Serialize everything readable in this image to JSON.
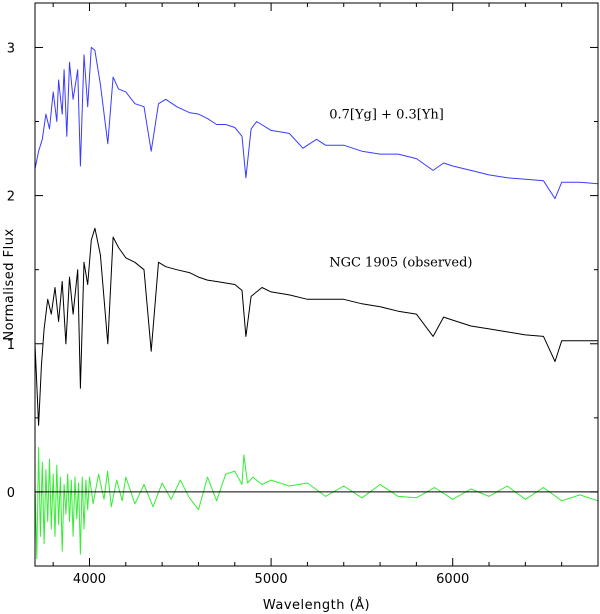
{
  "chart_data": {
    "type": "line",
    "title": "",
    "xlabel": "Wavelength (Å)",
    "ylabel": "Normalised Flux",
    "xlim": [
      3700,
      6800
    ],
    "ylim": [
      -0.5,
      3.3
    ],
    "grid": false,
    "x_ticks": [
      {
        "value": 4000,
        "label": "4000"
      },
      {
        "value": 5000,
        "label": "5000"
      },
      {
        "value": 6000,
        "label": "6000"
      }
    ],
    "y_ticks": [
      {
        "value": 0,
        "label": "0"
      },
      {
        "value": 1,
        "label": "1"
      },
      {
        "value": 2,
        "label": "2"
      },
      {
        "value": 3,
        "label": "3"
      }
    ],
    "zero_line": 0,
    "annotations": [
      {
        "text": "0.7[Yg] + 0.3[Yh]",
        "x": 5320,
        "y": 2.52
      },
      {
        "text": "NGC 1905 (observed)",
        "x": 5320,
        "y": 1.52
      }
    ],
    "series": [
      {
        "color": "#3b3bff",
        "x": [
          3700,
          3720,
          3740,
          3760,
          3780,
          3800,
          3820,
          3830,
          3850,
          3860,
          3875,
          3890,
          3910,
          3935,
          3950,
          3970,
          3990,
          4010,
          4030,
          4060,
          4101,
          4130,
          4160,
          4200,
          4250,
          4300,
          4340,
          4380,
          4420,
          4480,
          4550,
          4600,
          4650,
          4700,
          4750,
          4800,
          4840,
          4861,
          4890,
          4920,
          5000,
          5100,
          5175,
          5250,
          5300,
          5400,
          5500,
          5600,
          5700,
          5800,
          5892,
          5950,
          6000,
          6100,
          6200,
          6300,
          6400,
          6500,
          6563,
          6600,
          6700,
          6800
        ],
        "y": [
          2.18,
          2.3,
          2.38,
          2.55,
          2.45,
          2.7,
          2.5,
          2.78,
          2.55,
          2.85,
          2.4,
          2.9,
          2.65,
          2.85,
          2.2,
          2.95,
          2.6,
          3.0,
          2.98,
          2.75,
          2.35,
          2.8,
          2.72,
          2.7,
          2.62,
          2.6,
          2.3,
          2.62,
          2.65,
          2.6,
          2.56,
          2.55,
          2.52,
          2.48,
          2.48,
          2.46,
          2.4,
          2.12,
          2.45,
          2.5,
          2.44,
          2.42,
          2.32,
          2.38,
          2.34,
          2.34,
          2.3,
          2.28,
          2.28,
          2.25,
          2.17,
          2.22,
          2.2,
          2.17,
          2.14,
          2.12,
          2.11,
          2.1,
          1.98,
          2.09,
          2.09,
          2.08
        ]
      },
      {
        "color": "#000000",
        "x": [
          3700,
          3720,
          3735,
          3750,
          3770,
          3790,
          3810,
          3830,
          3850,
          3870,
          3890,
          3910,
          3935,
          3950,
          3970,
          3990,
          4010,
          4030,
          4060,
          4101,
          4130,
          4160,
          4200,
          4250,
          4300,
          4340,
          4380,
          4420,
          4480,
          4550,
          4600,
          4650,
          4700,
          4750,
          4800,
          4840,
          4861,
          4890,
          4950,
          5000,
          5100,
          5200,
          5300,
          5400,
          5500,
          5600,
          5700,
          5800,
          5892,
          5950,
          6000,
          6100,
          6200,
          6300,
          6400,
          6500,
          6563,
          6600,
          6700,
          6800
        ],
        "y": [
          1.0,
          0.45,
          0.85,
          1.1,
          1.3,
          1.2,
          1.38,
          1.15,
          1.42,
          1.0,
          1.45,
          1.2,
          1.5,
          0.7,
          1.55,
          1.4,
          1.7,
          1.78,
          1.6,
          1.0,
          1.72,
          1.65,
          1.58,
          1.55,
          1.5,
          0.95,
          1.55,
          1.52,
          1.5,
          1.48,
          1.45,
          1.43,
          1.42,
          1.41,
          1.4,
          1.36,
          1.05,
          1.32,
          1.38,
          1.35,
          1.33,
          1.3,
          1.3,
          1.3,
          1.27,
          1.25,
          1.22,
          1.2,
          1.05,
          1.18,
          1.16,
          1.12,
          1.1,
          1.08,
          1.06,
          1.05,
          0.88,
          1.02,
          1.02,
          1.02
        ]
      },
      {
        "color": "#33ee33",
        "x": [
          3700,
          3710,
          3720,
          3730,
          3740,
          3750,
          3760,
          3770,
          3780,
          3790,
          3800,
          3810,
          3820,
          3830,
          3840,
          3850,
          3860,
          3870,
          3880,
          3890,
          3900,
          3910,
          3920,
          3930,
          3940,
          3950,
          3960,
          3970,
          3980,
          3990,
          4000,
          4020,
          4050,
          4080,
          4100,
          4120,
          4150,
          4180,
          4200,
          4250,
          4300,
          4350,
          4400,
          4450,
          4500,
          4550,
          4600,
          4650,
          4700,
          4750,
          4800,
          4840,
          4850,
          4870,
          4900,
          4950,
          5000,
          5100,
          5200,
          5300,
          5400,
          5500,
          5600,
          5700,
          5800,
          5900,
          6000,
          6100,
          6200,
          6300,
          6400,
          6500,
          6600,
          6700,
          6800
        ],
        "y": [
          0.05,
          -0.45,
          0.3,
          -0.3,
          0.2,
          -0.35,
          0.15,
          -0.2,
          0.22,
          -0.25,
          0.12,
          -0.3,
          0.18,
          -0.22,
          0.1,
          -0.4,
          0.05,
          -0.15,
          0.12,
          -0.2,
          0.08,
          -0.3,
          0.1,
          -0.18,
          0.06,
          -0.42,
          0.1,
          -0.25,
          0.08,
          -0.12,
          0.1,
          -0.08,
          0.12,
          -0.05,
          0.14,
          -0.1,
          0.08,
          -0.06,
          0.1,
          -0.08,
          0.05,
          -0.1,
          0.06,
          -0.05,
          0.08,
          -0.04,
          -0.12,
          0.1,
          -0.06,
          0.12,
          0.14,
          0.05,
          0.25,
          0.06,
          0.1,
          0.05,
          0.08,
          0.04,
          0.06,
          -0.03,
          0.04,
          -0.04,
          0.05,
          -0.03,
          -0.04,
          0.03,
          -0.05,
          0.02,
          -0.03,
          0.04,
          -0.05,
          0.03,
          -0.06,
          -0.02,
          -0.06
        ]
      }
    ]
  }
}
